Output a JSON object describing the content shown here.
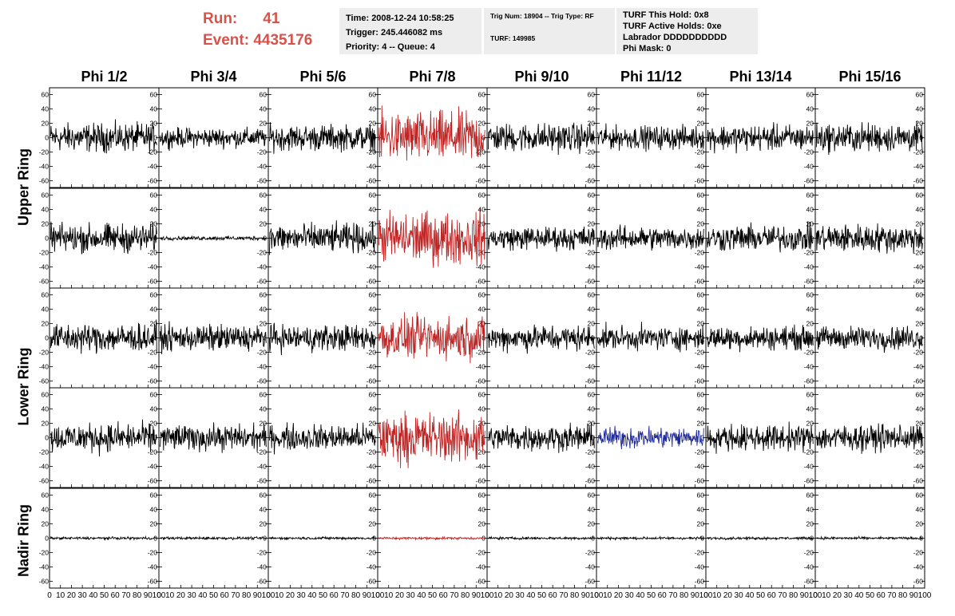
{
  "header": {
    "run_label": "Run:",
    "run_value": "41",
    "event_label": "Event:",
    "event_value": "4435176",
    "time": "Time: 2008-12-24 10:58:25",
    "trigger": "Trigger: 245.446082 ms",
    "priority": "Priority: 4 -- Queue: 4",
    "trig_num": "Trig Num: 18904 -- Trig Type: RF",
    "turf": "TURF: 149985",
    "turf_hold": "TURF This Hold: 0x8",
    "turf_active": "TURF Active Holds: 0xe",
    "labrador": "Labrador DDDDDDDDDD",
    "phi_mask": "Phi Mask: 0"
  },
  "columns": [
    "Phi 1/2",
    "Phi 3/4",
    "Phi 5/6",
    "Phi 7/8",
    "Phi 9/10",
    "Phi 11/12",
    "Phi 13/14",
    "Phi 15/16"
  ],
  "ring_labels": [
    "Upper Ring",
    "Lower Ring",
    "Nadir Ring"
  ],
  "colors": {
    "normal_trace": "#000000",
    "trigger_trace": "#c02424",
    "highlight_trace": "#1f2a9c",
    "title_red": "#d9524a",
    "panel_bg": "#ededed"
  },
  "chart_data": {
    "type": "line",
    "description_rows": 5,
    "description_cols": 8,
    "x_ticks": [
      "0",
      "10",
      "20",
      "30",
      "40",
      "50",
      "60",
      "70",
      "80",
      "90",
      "100"
    ],
    "y_ticks": [
      "60",
      "40",
      "20",
      "0",
      "-20",
      "-40",
      "-60"
    ],
    "xlim": [
      0,
      100
    ],
    "ylim": [
      -65,
      65
    ],
    "highlight": {
      "trigger_column": 3,
      "blue_cell": {
        "row": 3,
        "col": 5
      }
    },
    "amplitude": [
      [
        22,
        15,
        20,
        40,
        22,
        18,
        20,
        22
      ],
      [
        22,
        3,
        22,
        40,
        18,
        18,
        20,
        22
      ],
      [
        22,
        20,
        20,
        32,
        20,
        18,
        18,
        18
      ],
      [
        22,
        20,
        20,
        38,
        20,
        16,
        20,
        20
      ],
      [
        2,
        2,
        2,
        2,
        2,
        2,
        2,
        2
      ]
    ]
  }
}
